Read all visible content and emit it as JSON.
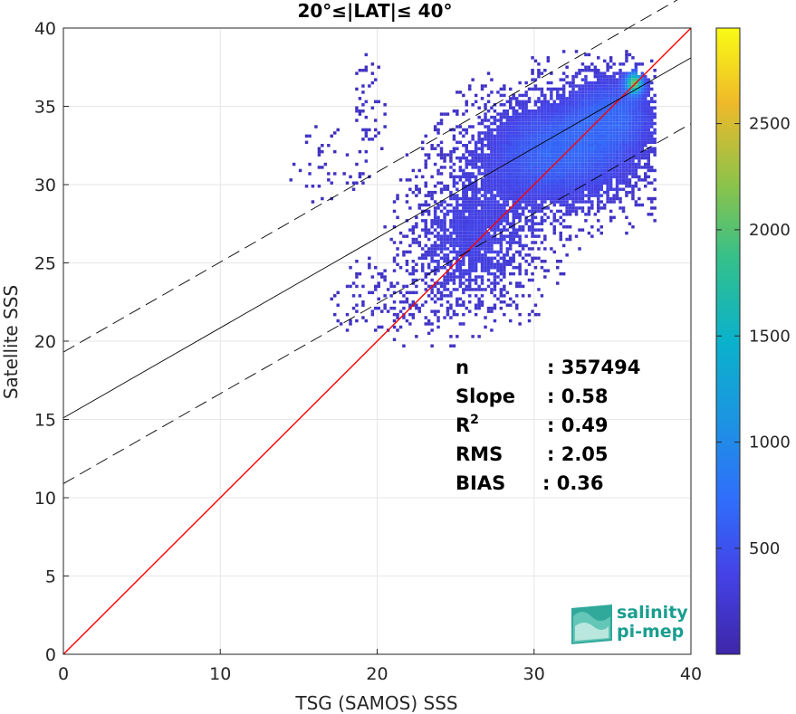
{
  "chart_data": {
    "type": "heatmap",
    "title": "20°≤|LAT|≤ 40°",
    "xlabel": "TSG (SAMOS) SSS",
    "ylabel": "Satellite SSS",
    "xlim": [
      0,
      40
    ],
    "ylim": [
      0,
      40
    ],
    "xticks": [
      "0",
      "10",
      "20",
      "30",
      "40"
    ],
    "yticks": [
      "0",
      "5",
      "10",
      "15",
      "20",
      "25",
      "30",
      "35",
      "40"
    ],
    "grid": true,
    "colormap": "parula",
    "colorbar": {
      "range": [
        1,
        2950
      ],
      "ticks": [
        "500",
        "1000",
        "1500",
        "2000",
        "2500"
      ]
    },
    "lines": [
      {
        "role": "one-to-one",
        "color": "#ff0000",
        "style": "solid",
        "intercept": 0,
        "slope": 1
      },
      {
        "role": "fit",
        "color": "#000000",
        "style": "solid",
        "intercept": 15.1,
        "slope": 0.575
      },
      {
        "role": "fit-upper",
        "color": "#000000",
        "style": "dashed",
        "intercept": 19.3,
        "slope": 0.575
      },
      {
        "role": "fit-lower",
        "color": "#000000",
        "style": "dashed",
        "intercept": 10.9,
        "slope": 0.575
      }
    ],
    "density_clusters": [
      {
        "x": 31.5,
        "y": 32.0,
        "sx": 3.2,
        "sy": 2.2,
        "weight": 1.0
      },
      {
        "x": 35.0,
        "y": 34.5,
        "sx": 1.7,
        "sy": 1.6,
        "weight": 0.8
      },
      {
        "x": 36.3,
        "y": 36.3,
        "sx": 0.5,
        "sy": 0.6,
        "weight": 0.4
      },
      {
        "x": 26.0,
        "y": 26.5,
        "sx": 2.5,
        "sy": 2.6,
        "weight": 0.45
      },
      {
        "x": 19.3,
        "y": 34.5,
        "sx": 0.6,
        "sy": 2.0,
        "weight": 0.12
      },
      {
        "x": 22.0,
        "y": 22.5,
        "sx": 3.0,
        "sy": 1.5,
        "weight": 0.12
      },
      {
        "x": 16.5,
        "y": 31.0,
        "sx": 1.5,
        "sy": 1.8,
        "weight": 0.06
      }
    ],
    "stats": [
      {
        "label": "n",
        "value": ": 357494"
      },
      {
        "label": "Slope",
        "value": ": 0.58"
      },
      {
        "label": "R",
        "sup": "2",
        "value": ": 0.49"
      },
      {
        "label": "RMS",
        "value": ": 2.05"
      },
      {
        "label": "BIAS",
        "value": ": 0.36"
      }
    ]
  },
  "logo": {
    "line1": "salinity",
    "line2": "pi-mep"
  },
  "colors": {
    "one_to_one": "#ff0000",
    "fit": "#000000",
    "logo": "#1a9e8f"
  }
}
